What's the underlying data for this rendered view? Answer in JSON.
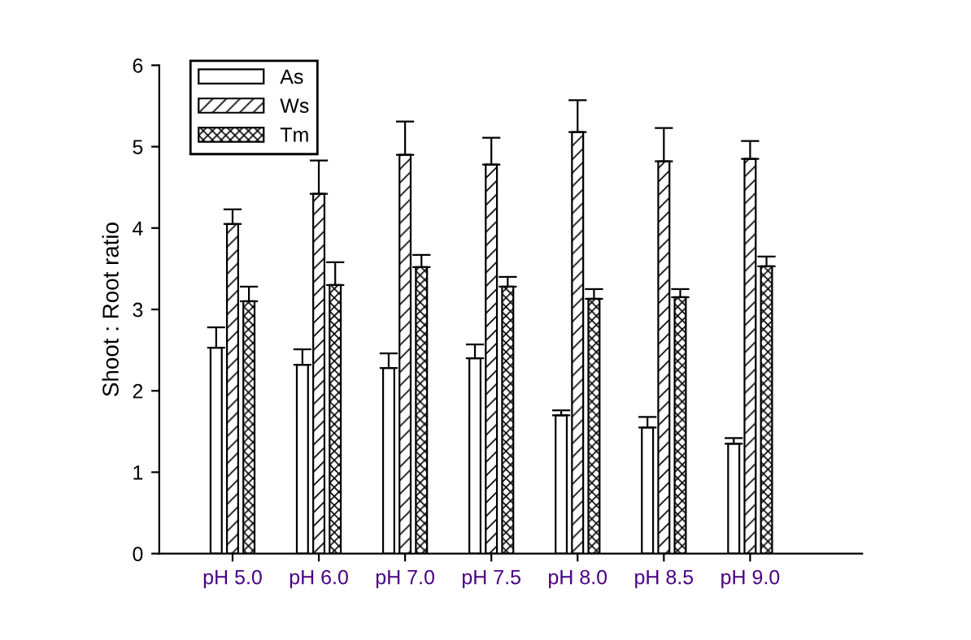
{
  "chart_data": {
    "type": "bar",
    "ylabel": "Shoot : Root ratio",
    "categories": [
      "pH 5.0",
      "pH 6.0",
      "pH 7.0",
      "pH 7.5",
      "pH 8.0",
      "pH 8.5",
      "pH 9.0"
    ],
    "series": [
      {
        "name": "As",
        "color": "#ffffff",
        "values": [
          2.53,
          2.32,
          2.28,
          2.4,
          1.7,
          1.55,
          1.35
        ],
        "errors": [
          [
            2.53,
            2.78
          ],
          [
            2.32,
            2.51
          ],
          [
            2.28,
            2.46
          ],
          [
            2.4,
            2.57
          ],
          [
            1.7,
            1.76
          ],
          [
            1.55,
            1.68
          ],
          [
            1.35,
            1.42
          ]
        ]
      },
      {
        "name": "Ws",
        "color": "#000000",
        "values": [
          4.05,
          4.42,
          4.9,
          4.78,
          5.18,
          4.82,
          4.85
        ],
        "errors": [
          [
            4.05,
            4.23
          ],
          [
            4.42,
            4.83
          ],
          [
            4.9,
            5.31
          ],
          [
            4.78,
            5.11
          ],
          [
            5.18,
            5.57
          ],
          [
            4.82,
            5.23
          ],
          [
            4.85,
            5.07
          ]
        ]
      },
      {
        "name": "Tm",
        "color": "#000000",
        "values": [
          3.1,
          3.3,
          3.52,
          3.28,
          3.13,
          3.15,
          3.53
        ],
        "errors": [
          [
            3.1,
            3.28
          ],
          [
            3.3,
            3.58
          ],
          [
            3.52,
            3.67
          ],
          [
            3.28,
            3.4
          ],
          [
            3.13,
            3.25
          ],
          [
            3.15,
            3.25
          ],
          [
            3.53,
            3.65
          ]
        ]
      }
    ],
    "ylim": [
      0,
      6
    ],
    "yticks": [
      0,
      1,
      2,
      3,
      4,
      5,
      6
    ],
    "grid": false,
    "legend": "top left"
  }
}
